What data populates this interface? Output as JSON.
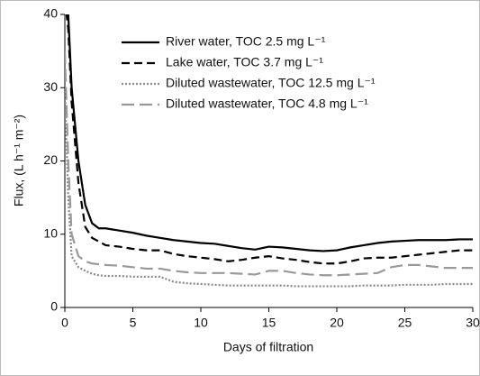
{
  "chart_data": {
    "type": "line",
    "xlabel": "Days of filtration",
    "ylabel": "Flux, (L h⁻¹ m⁻²)",
    "x": [
      0,
      0.25,
      0.5,
      1,
      1.5,
      2,
      2.5,
      3,
      4,
      5,
      6,
      7,
      8,
      9,
      10,
      11,
      12,
      13,
      14,
      15,
      16,
      17,
      18,
      19,
      20,
      21,
      22,
      23,
      24,
      25,
      26,
      27,
      28,
      29,
      30
    ],
    "series": [
      {
        "name": "River water, TOC 2.5 mg L⁻¹",
        "color": "#000000",
        "style": "solid",
        "values": [
          45,
          40,
          30,
          20,
          14,
          11.5,
          10.8,
          10.8,
          10.5,
          10.2,
          9.8,
          9.5,
          9.2,
          9,
          8.8,
          8.7,
          8.4,
          8.1,
          7.9,
          8.3,
          8.2,
          8,
          7.8,
          7.7,
          7.8,
          8.2,
          8.5,
          8.8,
          9,
          9.1,
          9.2,
          9.2,
          9.2,
          9.3,
          9.3
        ]
      },
      {
        "name": "Lake water, TOC 3.7 mg L⁻¹",
        "color": "#000000",
        "style": "dashed",
        "values": [
          42,
          38,
          28,
          17,
          11,
          9.5,
          9,
          8.5,
          8.3,
          8,
          7.8,
          7.8,
          7.3,
          7,
          6.8,
          6.6,
          6.3,
          6.5,
          6.8,
          7,
          6.7,
          6.5,
          6.2,
          6,
          6,
          6.3,
          6.7,
          6.8,
          6.8,
          7,
          7.2,
          7.4,
          7.6,
          7.8,
          7.8
        ]
      },
      {
        "name": "Diluted wastewater, TOC 12.5 mg L⁻¹",
        "color": "#888888",
        "style": "dotted",
        "values": [
          30,
          15,
          7,
          5.5,
          5,
          4.6,
          4.4,
          4.3,
          4.3,
          4.2,
          4.2,
          4.2,
          3.5,
          3.3,
          3.2,
          3.1,
          3,
          3,
          3,
          3,
          3,
          2.9,
          2.9,
          2.9,
          2.9,
          2.9,
          3,
          3,
          3,
          3.1,
          3.1,
          3.1,
          3.2,
          3.2,
          3.2
        ]
      },
      {
        "name": "Diluted wastewater, TOC 4.8 mg L⁻¹",
        "color": "#999999",
        "style": "longdash",
        "values": [
          35,
          20,
          10,
          7,
          6.3,
          6,
          5.9,
          5.8,
          5.7,
          5.5,
          5.3,
          5.3,
          5,
          4.8,
          4.7,
          4.7,
          4.7,
          4.6,
          4.5,
          5,
          5,
          4.7,
          4.5,
          4.4,
          4.4,
          4.5,
          4.6,
          4.7,
          5.5,
          5.8,
          5.8,
          5.6,
          5.4,
          5.4,
          5.4
        ]
      }
    ],
    "xlim": [
      0,
      30
    ],
    "xticks": [
      0,
      5,
      10,
      15,
      20,
      25,
      30
    ],
    "ylim": [
      0,
      40
    ],
    "yticks": [
      0,
      10,
      20,
      30,
      40
    ],
    "legend": "top"
  }
}
